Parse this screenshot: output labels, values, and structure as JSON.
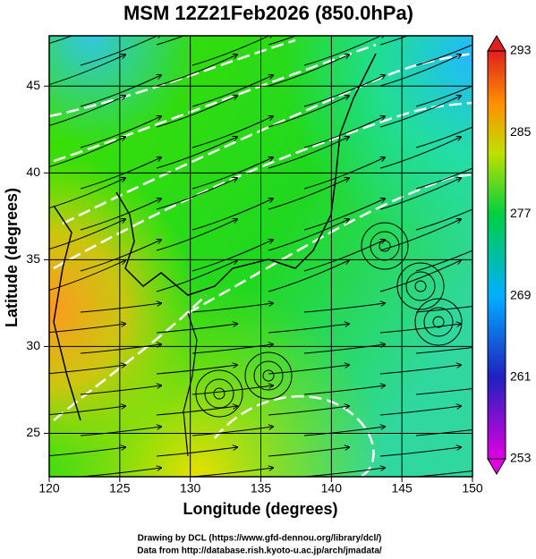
{
  "chart_data": {
    "type": "map",
    "title": "MSM 12Z21Feb2026 (850.0hPa)",
    "x_label": "Longitude (degrees)",
    "y_label": "Latitude  (degrees)",
    "xlim": [
      120,
      150
    ],
    "ylim": [
      22.5,
      47.9
    ],
    "xticks": [
      120,
      125,
      130,
      135,
      140,
      145,
      150
    ],
    "yticks": [
      25,
      30,
      35,
      40,
      45
    ],
    "grid": true,
    "colorbar": {
      "lim": [
        253,
        293
      ],
      "ticks": [
        253,
        261,
        269,
        277,
        285,
        293
      ]
    }
  },
  "footer": [
    "Drawing by DCL (https://www.gfd-dennou.org/library/dcl/)",
    "Data from http://database.rish.kyoto-u.ac.jp/arch/jmadata/"
  ]
}
